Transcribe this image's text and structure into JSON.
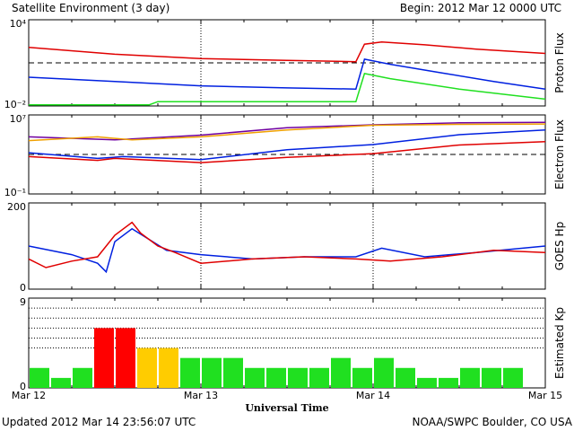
{
  "header": {
    "title": "Satellite Environment (3 day)",
    "begin": "Begin:  2012 Mar 12 0000 UTC"
  },
  "footer": {
    "updated": "Updated 2012 Mar 14 23:56:07 UTC",
    "source": "NOAA/SWPC Boulder, CO USA"
  },
  "x_axis": {
    "label": "Universal Time",
    "ticks": [
      "Mar 12",
      "Mar 13",
      "Mar 14",
      "Mar 15"
    ],
    "range_days": [
      0,
      3
    ]
  },
  "colors": {
    "red": "#e00000",
    "blue": "#0020e0",
    "green": "#20e020",
    "orange": "#f0a000",
    "purple": "#7000a0",
    "kp_low": "#20e020",
    "kp_mid": "#ffcc00",
    "kp_high": "#ff0000"
  },
  "chart_data": [
    {
      "type": "line",
      "ylabel": "Proton Flux",
      "yscale": "log",
      "ylim": [
        0.01,
        10000
      ],
      "y_tick_labels": [
        "10⁴",
        "10⁻²"
      ],
      "grid": "vertical dotted at day boundaries",
      "threshold": 10,
      "series": [
        {
          "color": "red",
          "x": [
            0,
            0.5,
            1.0,
            1.5,
            1.9,
            1.95,
            2.05,
            2.3,
            2.6,
            3.0
          ],
          "y": [
            120,
            40,
            20,
            15,
            12,
            200,
            280,
            180,
            90,
            45
          ]
        },
        {
          "color": "blue",
          "x": [
            0,
            0.5,
            1.0,
            1.5,
            1.9,
            1.95,
            2.1,
            2.4,
            2.7,
            3.0
          ],
          "y": [
            1.0,
            0.5,
            0.25,
            0.18,
            0.15,
            18,
            8,
            2,
            0.5,
            0.15
          ]
        },
        {
          "color": "green",
          "x": [
            0,
            0.7,
            0.75,
            1.0,
            1.5,
            1.9,
            1.95,
            2.1,
            2.5,
            3.0
          ],
          "y": [
            0.012,
            0.012,
            0.02,
            0.02,
            0.02,
            0.02,
            1.8,
            0.8,
            0.15,
            0.03
          ]
        }
      ]
    },
    {
      "type": "line",
      "ylabel": "Electron Flux",
      "yscale": "log",
      "ylim": [
        0.1,
        10000000
      ],
      "y_tick_labels": [
        "10⁷",
        "10⁻¹"
      ],
      "grid": "vertical dotted at day boundaries",
      "threshold": 1000,
      "series": [
        {
          "color": "purple",
          "x": [
            0,
            0.5,
            1.0,
            1.5,
            2.0,
            2.5,
            3.0
          ],
          "y": [
            60000,
            30000,
            90000,
            500000,
            1000000,
            1600000,
            1800000
          ]
        },
        {
          "color": "orange",
          "x": [
            0,
            0.4,
            0.6,
            1.0,
            1.5,
            2.0,
            2.5,
            3.0
          ],
          "y": [
            25000,
            60000,
            30000,
            60000,
            300000,
            900000,
            1100000,
            1200000
          ]
        },
        {
          "color": "blue",
          "x": [
            0,
            0.4,
            0.55,
            1.0,
            1.5,
            2.0,
            2.5,
            3.0
          ],
          "y": [
            1500,
            400,
            600,
            300,
            3000,
            10000,
            100000,
            300000
          ]
        },
        {
          "color": "red",
          "x": [
            0,
            0.4,
            0.5,
            1.0,
            1.5,
            2.0,
            2.5,
            3.0
          ],
          "y": [
            600,
            250,
            400,
            150,
            500,
            1200,
            9000,
            20000
          ]
        }
      ]
    },
    {
      "type": "line",
      "ylabel": "GOES Hp",
      "ylim": [
        0,
        200
      ],
      "y_tick_labels": [
        "200",
        "0"
      ],
      "grid": "vertical dotted at day boundaries",
      "series": [
        {
          "color": "blue",
          "x": [
            0,
            0.25,
            0.4,
            0.45,
            0.5,
            0.6,
            0.7,
            0.8,
            1.0,
            1.3,
            1.6,
            1.9,
            2.05,
            2.3,
            2.6,
            3.0
          ],
          "y": [
            100,
            80,
            60,
            40,
            110,
            140,
            115,
            90,
            80,
            70,
            75,
            75,
            95,
            75,
            85,
            100
          ]
        },
        {
          "color": "red",
          "x": [
            0,
            0.1,
            0.25,
            0.4,
            0.5,
            0.6,
            0.65,
            0.75,
            0.85,
            1.0,
            1.3,
            1.6,
            1.9,
            2.1,
            2.4,
            2.7,
            3.0
          ],
          "y": [
            70,
            50,
            65,
            75,
            125,
            155,
            130,
            100,
            85,
            60,
            70,
            75,
            70,
            65,
            75,
            90,
            85
          ]
        }
      ]
    },
    {
      "type": "bar",
      "ylabel": "Estimated Kp",
      "ylim": [
        0,
        9
      ],
      "y_tick_labels": [
        "9",
        "0"
      ],
      "grid": "horizontal dotted lines at 4, 5, 6, 7, 8",
      "bar_width_hours": 3,
      "values": [
        2,
        1,
        2,
        6,
        6,
        4,
        4,
        3,
        3,
        3,
        2,
        2,
        2,
        2,
        3,
        2,
        3,
        2,
        1,
        1,
        2,
        2,
        2
      ],
      "color_rule": "Kp <= 3 green, Kp = 4 yellow, Kp >= 5 red"
    }
  ]
}
